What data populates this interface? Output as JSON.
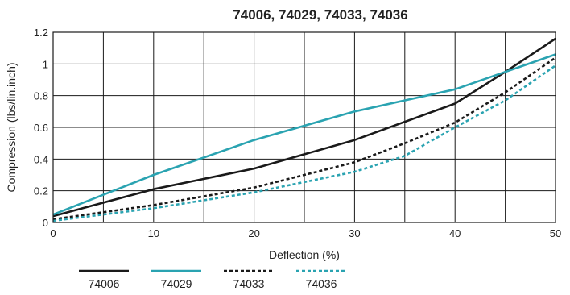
{
  "chart_data": {
    "type": "line",
    "title": "74006, 74029, 74033, 74036",
    "xlabel": "Deflection (%)",
    "ylabel": "Compression (lbs/lin.inch)",
    "xlim": [
      0,
      50
    ],
    "ylim": [
      0,
      1.2
    ],
    "xticks": [
      0,
      10,
      20,
      30,
      40,
      50
    ],
    "yticks": [
      0,
      0.2,
      0.4,
      0.6,
      0.8,
      1,
      1.2
    ],
    "xtick_labels": [
      "0",
      "10",
      "20",
      "30",
      "40",
      "50"
    ],
    "ytick_labels": [
      "0",
      "0.2",
      "0.4",
      "0.6",
      "0.8",
      "1",
      "1.2"
    ],
    "grid": true,
    "legend_position": "bottom",
    "series": [
      {
        "name": "74006",
        "color": "#1a1a1a",
        "dash": "solid",
        "x": [
          0,
          10,
          20,
          30,
          40,
          45,
          50
        ],
        "y": [
          0.04,
          0.21,
          0.34,
          0.52,
          0.75,
          0.95,
          1.16
        ]
      },
      {
        "name": "74029",
        "color": "#2aa3b1",
        "dash": "solid",
        "x": [
          0,
          10,
          20,
          30,
          40,
          45,
          50
        ],
        "y": [
          0.05,
          0.3,
          0.52,
          0.7,
          0.84,
          0.95,
          1.06
        ]
      },
      {
        "name": "74033",
        "color": "#1a1a1a",
        "dash": "dotted",
        "x": [
          0,
          10,
          20,
          30,
          35,
          40,
          45,
          50
        ],
        "y": [
          0.02,
          0.11,
          0.22,
          0.38,
          0.5,
          0.63,
          0.82,
          1.04
        ]
      },
      {
        "name": "74036",
        "color": "#2aa3b1",
        "dash": "dotted",
        "x": [
          0,
          10,
          20,
          30,
          35,
          40,
          45,
          50
        ],
        "y": [
          0.01,
          0.09,
          0.19,
          0.32,
          0.42,
          0.6,
          0.77,
          0.99
        ]
      }
    ]
  }
}
